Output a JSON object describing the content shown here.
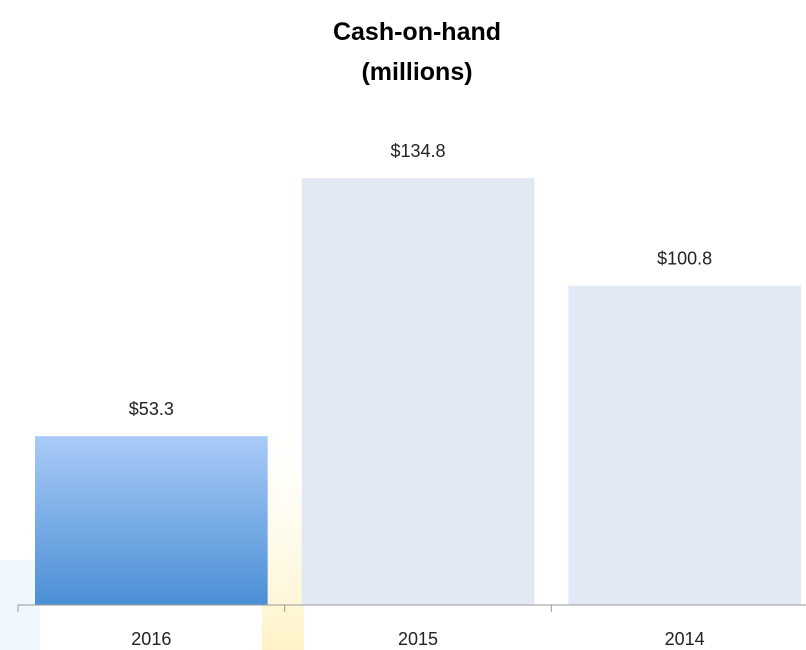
{
  "chart_data": {
    "type": "bar",
    "title": "Cash-on-hand\n(millions)",
    "categories": [
      "2016",
      "2015",
      "2014"
    ],
    "values": [
      53.3,
      134.8,
      100.8
    ],
    "value_labels": [
      "$53.3",
      "$134.8",
      "$100.8"
    ],
    "colors": [
      [
        "#aacbf8",
        "#4a8fd5"
      ],
      "#e2e9f4",
      "#e2e9f4"
    ]
  }
}
